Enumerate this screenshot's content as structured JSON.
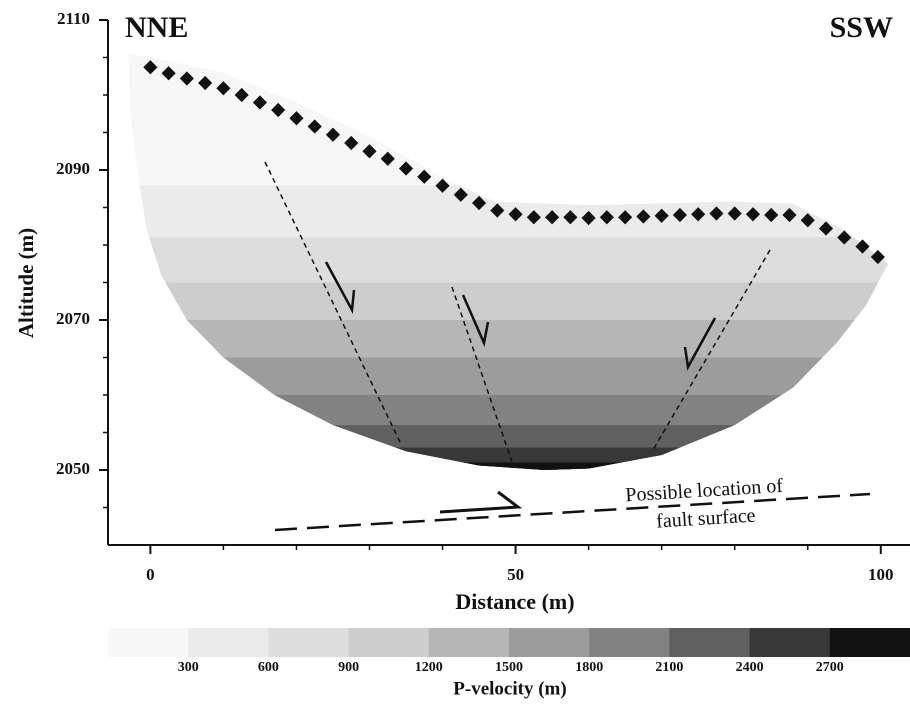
{
  "chart_data": {
    "type": "tomogram",
    "xlabel": "Distance (m)",
    "ylabel": "Altitude (m)",
    "left_label": "NNE",
    "right_label": "SSW",
    "annotation": [
      "Possible location of",
      "fault surface"
    ],
    "xlim": [
      -5.8,
      104
    ],
    "ylim": [
      2040,
      2110
    ],
    "xticks": [
      0,
      50,
      100
    ],
    "yticks": [
      2050,
      2070,
      2090,
      2110
    ],
    "xminor_step": 10,
    "yminor_step": 5,
    "sensors": {
      "color": "#111111",
      "x": [
        0,
        2.5,
        5,
        7.5,
        10,
        12.5,
        15,
        17.5,
        20,
        22.5,
        25,
        27.5,
        30,
        32.5,
        35,
        37.5,
        40,
        42.5,
        45,
        47.5,
        50,
        52.5,
        55,
        57.5,
        60,
        62.5,
        65,
        67.5,
        70,
        72.5,
        75,
        77.5,
        80,
        82.5,
        85,
        87.5,
        90,
        92.5,
        95,
        97.5,
        99.6
      ],
      "y": [
        2103.7,
        2102.9,
        2102.2,
        2101.6,
        2100.9,
        2100,
        2099,
        2098,
        2096.9,
        2095.8,
        2094.7,
        2093.6,
        2092.5,
        2091.5,
        2090.2,
        2089.1,
        2087.9,
        2086.7,
        2085.6,
        2084.6,
        2084.1,
        2083.7,
        2083.7,
        2083.7,
        2083.6,
        2083.7,
        2083.7,
        2083.8,
        2083.9,
        2084,
        2084.1,
        2084.2,
        2084.2,
        2084.1,
        2084,
        2084,
        2083.3,
        2082.2,
        2081,
        2079.8,
        2078.4
      ]
    },
    "section_boundary": {
      "x": [
        -3,
        0,
        10,
        20,
        30,
        40,
        47,
        60,
        80,
        88,
        95,
        101,
        98,
        94,
        88,
        80,
        70,
        60,
        54,
        45,
        35,
        25,
        17,
        10,
        5,
        1.5,
        -0.5,
        -1.8,
        -2.8
      ],
      "y": [
        2105.5,
        2105,
        2103,
        2099,
        2094.5,
        2089,
        2085.8,
        2085.3,
        2085.8,
        2085.5,
        2082,
        2077.5,
        2072,
        2067,
        2061,
        2056,
        2052,
        2050.2,
        2050,
        2050.6,
        2052.5,
        2056,
        2060,
        2065,
        2070,
        2076,
        2082,
        2090,
        2098
      ]
    },
    "tomogram": {
      "band_tops": [
        2110,
        2088,
        2081,
        2075,
        2070,
        2065,
        2060,
        2056,
        2053,
        2051
      ]
    },
    "colorbar": {
      "label": "P-velocity (m)",
      "lim": [
        0,
        3000
      ],
      "ticks": [
        300,
        600,
        900,
        1200,
        1500,
        1800,
        2100,
        2400,
        2700
      ],
      "colors": [
        "#f7f7f7",
        "#ebebeb",
        "#dddddd",
        "#cdcdcd",
        "#b6b6b6",
        "#9c9c9c",
        "#828282",
        "#606060",
        "#383838",
        "#111111"
      ]
    }
  }
}
